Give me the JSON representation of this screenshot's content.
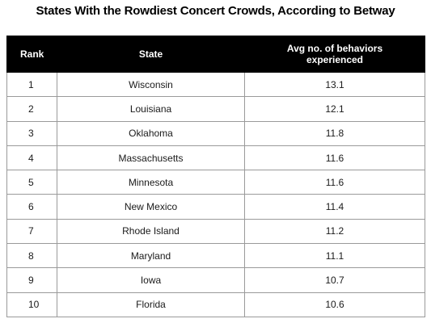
{
  "chart_data": {
    "type": "table",
    "title": "States With the Rowdiest Concert Crowds, According to Betway",
    "columns": [
      "Rank",
      "State",
      "Avg no. of behaviors experienced"
    ],
    "rows": [
      {
        "rank": "1",
        "state": "Wisconsin",
        "avg": "13.1"
      },
      {
        "rank": "2",
        "state": "Louisiana",
        "avg": "12.1"
      },
      {
        "rank": "3",
        "state": "Oklahoma",
        "avg": "11.8"
      },
      {
        "rank": "4",
        "state": "Massachusetts",
        "avg": "11.6"
      },
      {
        "rank": "5",
        "state": "Minnesota",
        "avg": "11.6"
      },
      {
        "rank": "6",
        "state": "New Mexico",
        "avg": "11.4"
      },
      {
        "rank": "7",
        "state": "Rhode Island",
        "avg": "11.2"
      },
      {
        "rank": "8",
        "state": "Maryland",
        "avg": "11.1"
      },
      {
        "rank": "9",
        "state": "Iowa",
        "avg": "10.7"
      },
      {
        "rank": "10",
        "state": "Florida",
        "avg": "10.6"
      }
    ]
  },
  "colors": {
    "header_background": "#000000",
    "header_text": "#ffffff",
    "grid_line": "#9a9a9a"
  }
}
